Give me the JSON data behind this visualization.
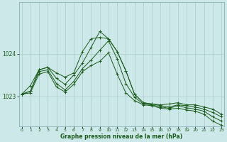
{
  "background_color": "#cce8e8",
  "grid_color": "#aacccc",
  "line_color": "#1a5c1a",
  "xlabel": "Graphe pression niveau de la mer (hPa)",
  "xticks": [
    0,
    1,
    2,
    3,
    4,
    5,
    6,
    7,
    8,
    9,
    10,
    11,
    12,
    13,
    14,
    15,
    16,
    17,
    18,
    19,
    20,
    21,
    22,
    23
  ],
  "yticks": [
    1023,
    1024
  ],
  "ylim": [
    1022.3,
    1025.2
  ],
  "xlim": [
    -0.3,
    23.3
  ],
  "series": [
    [
      1023.05,
      1023.25,
      1023.62,
      1023.68,
      1023.55,
      1023.45,
      1023.55,
      1024.05,
      1024.35,
      1024.38,
      1024.35,
      1024.05,
      1023.6,
      1023.05,
      1022.85,
      1022.82,
      1022.8,
      1022.82,
      1022.85,
      1022.8,
      1022.8,
      1022.75,
      1022.7,
      1022.58
    ],
    [
      1023.05,
      1023.12,
      1023.62,
      1023.68,
      1023.42,
      1023.28,
      1023.5,
      1023.78,
      1024.15,
      1024.52,
      1024.35,
      1024.05,
      1023.6,
      1023.05,
      1022.85,
      1022.82,
      1022.78,
      1022.75,
      1022.8,
      1022.78,
      1022.75,
      1022.7,
      1022.62,
      1022.52
    ],
    [
      1023.05,
      1023.12,
      1023.58,
      1023.62,
      1023.3,
      1023.15,
      1023.35,
      1023.65,
      1023.85,
      1024.08,
      1024.3,
      1023.88,
      1023.3,
      1022.98,
      1022.82,
      1022.8,
      1022.75,
      1022.72,
      1022.78,
      1022.73,
      1022.7,
      1022.65,
      1022.52,
      1022.42
    ],
    [
      1023.05,
      1023.08,
      1023.52,
      1023.58,
      1023.22,
      1023.1,
      1023.28,
      1023.58,
      1023.72,
      1023.82,
      1024.02,
      1023.52,
      1023.08,
      1022.9,
      1022.8,
      1022.78,
      1022.72,
      1022.7,
      1022.72,
      1022.68,
      1022.65,
      1022.58,
      1022.42,
      1022.32
    ]
  ]
}
